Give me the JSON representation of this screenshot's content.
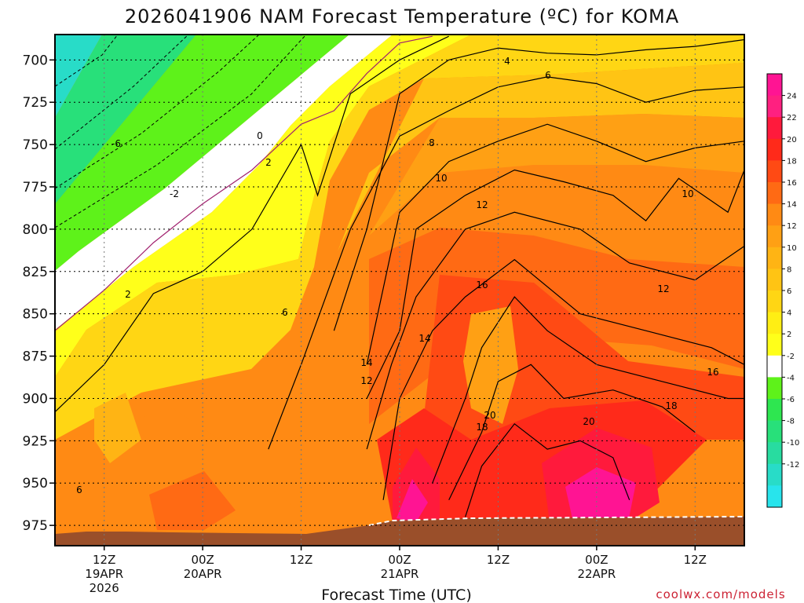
{
  "chart_data": {
    "type": "heatmap",
    "title": "2026041906 NAM Forecast Temperature (ºC) for KOMA",
    "xlabel": "Forecast Time (UTC)",
    "ylabel": "",
    "credit": "coolwx.com/models",
    "y_axis": {
      "ticks": [
        "700",
        "725",
        "750",
        "775",
        "800",
        "825",
        "850",
        "875",
        "900",
        "925",
        "950",
        "975"
      ],
      "values": [
        700,
        725,
        750,
        775,
        800,
        825,
        850,
        875,
        900,
        925,
        950,
        975
      ],
      "range": [
        685,
        987
      ]
    },
    "x_axis": {
      "range_hours": [
        6,
        90
      ],
      "ticks": [
        {
          "hour": 12,
          "line1": "12Z",
          "line2": "19APR",
          "line3": "2026"
        },
        {
          "hour": 24,
          "line1": "00Z",
          "line2": "20APR",
          "line3": ""
        },
        {
          "hour": 36,
          "line1": "12Z",
          "line2": "",
          "line3": ""
        },
        {
          "hour": 48,
          "line1": "00Z",
          "line2": "21APR",
          "line3": ""
        },
        {
          "hour": 60,
          "line1": "12Z",
          "line2": "",
          "line3": ""
        },
        {
          "hour": 72,
          "line1": "00Z",
          "line2": "22APR",
          "line3": ""
        },
        {
          "hour": 84,
          "line1": "12Z",
          "line2": "",
          "line3": ""
        }
      ]
    },
    "colorbar": {
      "labels": [
        "24",
        "22",
        "20",
        "18",
        "16",
        "14",
        "12",
        "10",
        "8",
        "6",
        "4",
        "2",
        "-2",
        "-4",
        "-6",
        "-8",
        "-10",
        "-12"
      ],
      "colors": [
        "#ff1493",
        "#ff2080",
        "#ff1a3c",
        "#ff2a1a",
        "#ff4a14",
        "#ff6a14",
        "#ff8a14",
        "#ffa014",
        "#ffb414",
        "#ffc414",
        "#ffd614",
        "#ffee14",
        "#ffff1a",
        "#ffffff",
        "#5ef21a",
        "#2ee650",
        "#28e07a",
        "#28dca0",
        "#28dcc8",
        "#28e4ec"
      ]
    },
    "contour_labels": [
      "4",
      "6",
      "8",
      "10",
      "12",
      "16",
      "14",
      "14",
      "12",
      "20",
      "18",
      "20",
      "18",
      "16",
      "12",
      "10",
      "0",
      "2",
      "-2",
      "-6",
      "2",
      "6",
      "6"
    ],
    "isotherms": [
      {
        "value": 0,
        "points": [
          [
            6,
            860
          ],
          [
            12,
            836
          ],
          [
            18,
            808
          ],
          [
            24,
            785
          ],
          [
            30,
            765
          ],
          [
            36,
            738
          ],
          [
            40,
            730
          ],
          [
            44,
            708
          ],
          [
            48,
            690
          ],
          [
            52,
            686
          ]
        ]
      },
      {
        "value": 2,
        "points": [
          [
            6,
            908
          ],
          [
            12,
            880
          ],
          [
            18,
            838
          ],
          [
            24,
            825
          ],
          [
            30,
            800
          ],
          [
            33,
            775
          ],
          [
            36,
            750
          ],
          [
            38,
            780
          ],
          [
            42,
            720
          ],
          [
            48,
            700
          ],
          [
            54,
            686
          ]
        ]
      },
      {
        "value": 4,
        "points": [
          [
            40,
            860
          ],
          [
            44,
            800
          ],
          [
            48,
            720
          ],
          [
            54,
            700
          ],
          [
            60,
            693
          ],
          [
            66,
            696
          ],
          [
            72,
            697
          ],
          [
            78,
            694
          ],
          [
            84,
            692
          ],
          [
            90,
            688
          ]
        ]
      },
      {
        "value": 6,
        "points": [
          [
            32,
            930
          ],
          [
            36,
            880
          ],
          [
            42,
            800
          ],
          [
            48,
            745
          ],
          [
            54,
            730
          ],
          [
            60,
            716
          ],
          [
            66,
            710
          ],
          [
            72,
            714
          ],
          [
            78,
            725
          ],
          [
            84,
            718
          ],
          [
            90,
            716
          ]
        ]
      },
      {
        "value": 8,
        "points": [
          [
            44,
            880
          ],
          [
            48,
            790
          ],
          [
            54,
            760
          ],
          [
            60,
            748
          ],
          [
            66,
            738
          ],
          [
            72,
            748
          ],
          [
            78,
            760
          ],
          [
            84,
            752
          ],
          [
            90,
            748
          ]
        ]
      },
      {
        "value": 10,
        "points": [
          [
            44,
            900
          ],
          [
            48,
            860
          ],
          [
            50,
            800
          ],
          [
            56,
            780
          ],
          [
            62,
            765
          ],
          [
            68,
            772
          ],
          [
            74,
            780
          ],
          [
            78,
            795
          ],
          [
            82,
            770
          ],
          [
            88,
            790
          ],
          [
            90,
            765
          ]
        ]
      },
      {
        "value": 12,
        "points": [
          [
            44,
            930
          ],
          [
            47,
            880
          ],
          [
            50,
            840
          ],
          [
            56,
            800
          ],
          [
            62,
            790
          ],
          [
            70,
            800
          ],
          [
            76,
            820
          ],
          [
            84,
            830
          ],
          [
            90,
            810
          ]
        ]
      },
      {
        "value": 14,
        "points": [
          [
            46,
            960
          ],
          [
            48,
            900
          ],
          [
            52,
            860
          ],
          [
            56,
            840
          ],
          [
            62,
            818
          ],
          [
            70,
            850
          ],
          [
            78,
            860
          ],
          [
            86,
            870
          ],
          [
            90,
            880
          ]
        ]
      },
      {
        "value": 16,
        "points": [
          [
            52,
            950
          ],
          [
            56,
            900
          ],
          [
            58,
            870
          ],
          [
            62,
            840
          ],
          [
            66,
            860
          ],
          [
            72,
            880
          ],
          [
            80,
            890
          ],
          [
            88,
            900
          ],
          [
            90,
            900
          ]
        ]
      },
      {
        "value": 18,
        "points": [
          [
            54,
            960
          ],
          [
            58,
            920
          ],
          [
            60,
            890
          ],
          [
            64,
            880
          ],
          [
            68,
            900
          ],
          [
            74,
            895
          ],
          [
            80,
            905
          ],
          [
            84,
            920
          ]
        ]
      },
      {
        "value": 20,
        "points": [
          [
            56,
            970
          ],
          [
            58,
            940
          ],
          [
            62,
            915
          ],
          [
            66,
            930
          ],
          [
            70,
            925
          ],
          [
            74,
            935
          ],
          [
            76,
            960
          ]
        ]
      }
    ]
  }
}
